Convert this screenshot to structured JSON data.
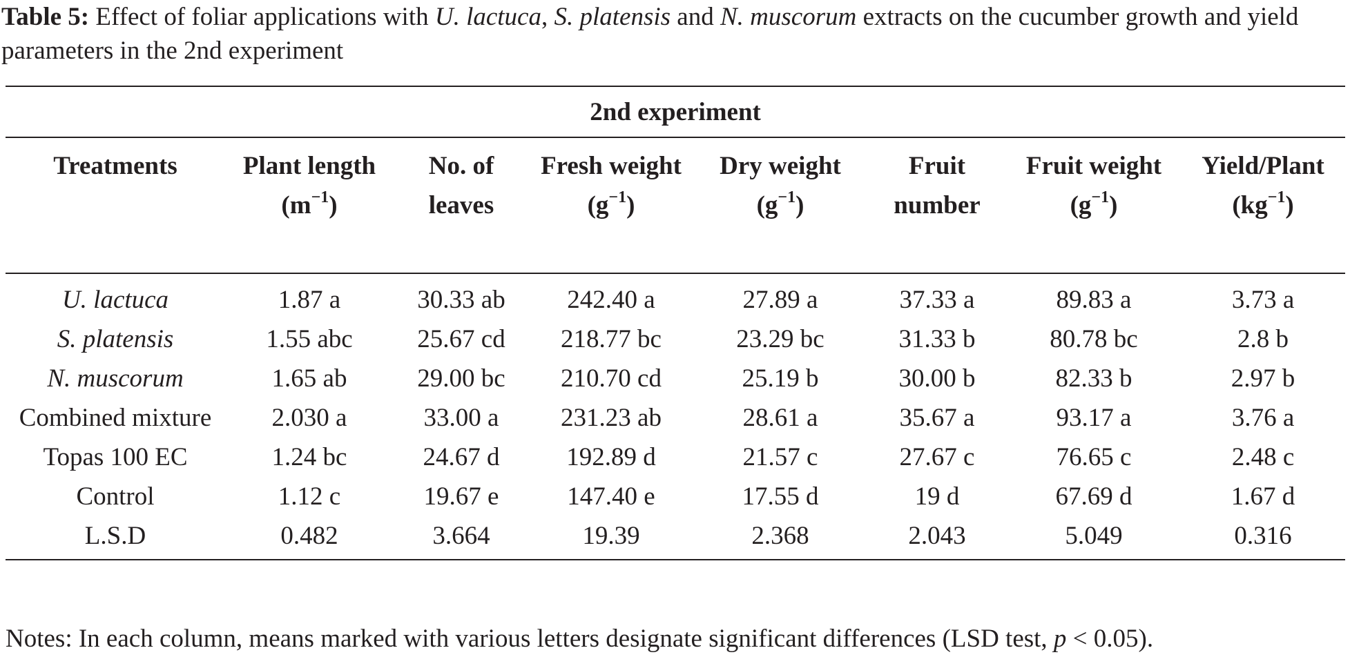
{
  "caption": {
    "label": "Table 5:",
    "text_1": " Effect of foliar applications with ",
    "species_1": "U. lactuca",
    "sep_1": ", ",
    "species_2": "S. platensis",
    "sep_2": " and ",
    "species_3": "N. muscorum",
    "text_2": " extracts on the cucumber growth and yield parameters in the 2nd experiment"
  },
  "table": {
    "group_header": "2nd experiment",
    "columns": [
      {
        "label": "Treatments",
        "unit": ""
      },
      {
        "label": "Plant length (m",
        "unit": "−1",
        "suffix": ")"
      },
      {
        "label": "No. of leaves",
        "unit": ""
      },
      {
        "label": "Fresh weight (g",
        "unit": "−1",
        "suffix": ")"
      },
      {
        "label": "Dry weight (g",
        "unit": "−1",
        "suffix": ")"
      },
      {
        "label": "Fruit number",
        "unit": ""
      },
      {
        "label": "Fruit weight (g",
        "unit": "−1",
        "suffix": ")"
      },
      {
        "label": "Yield/Plant (kg",
        "unit": "−1",
        "suffix": ")"
      }
    ],
    "rows": [
      {
        "treatment": "U. lactuca",
        "italic": true,
        "values": [
          "1.87 a",
          "30.33 ab",
          "242.40 a",
          "27.89 a",
          "37.33 a",
          "89.83 a",
          "3.73 a"
        ]
      },
      {
        "treatment": "S. platensis",
        "italic": true,
        "values": [
          "1.55 abc",
          "25.67 cd",
          "218.77 bc",
          "23.29 bc",
          "31.33 b",
          "80.78 bc",
          "2.8 b"
        ]
      },
      {
        "treatment": "N. muscorum",
        "italic": true,
        "values": [
          "1.65 ab",
          "29.00 bc",
          "210.70 cd",
          "25.19 b",
          "30.00 b",
          "82.33 b",
          "2.97 b"
        ]
      },
      {
        "treatment": "Combined mixture",
        "italic": false,
        "values": [
          "2.030 a",
          "33.00 a",
          "231.23 ab",
          "28.61 a",
          "35.67 a",
          "93.17 a",
          "3.76 a"
        ]
      },
      {
        "treatment": "Topas 100 EC",
        "italic": false,
        "values": [
          "1.24 bc",
          "24.67 d",
          "192.89 d",
          "21.57 c",
          "27.67 c",
          "76.65 c",
          "2.48 c"
        ]
      },
      {
        "treatment": "Control",
        "italic": false,
        "values": [
          "1.12 c",
          "19.67 e",
          "147.40 e",
          "17.55 d",
          "19 d",
          "67.69 d",
          "1.67 d"
        ]
      },
      {
        "treatment": "L.S.D",
        "italic": false,
        "values": [
          "0.482",
          "3.664",
          "19.39",
          "2.368",
          "2.043",
          "5.049",
          "0.316"
        ]
      }
    ]
  },
  "notes": {
    "text": "Notes: In each column, means marked with various letters designate significant differences (LSD test, ",
    "p": "p",
    "tail": " < 0.05)."
  }
}
